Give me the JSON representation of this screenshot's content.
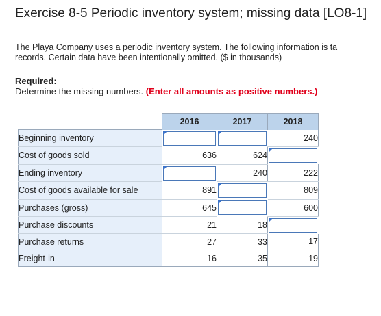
{
  "title": "Exercise 8-5 Periodic inventory system; missing data [LO8-1]",
  "intro_line1": "The Playa Company uses a periodic inventory system. The following information is ta",
  "intro_line2": "records. Certain data have been intentionally omitted. ($ in thousands)",
  "required_heading": "Required:",
  "required_text": "Determine the missing numbers.",
  "required_instruction": "(Enter all amounts as positive numbers.)",
  "columns": [
    "2016",
    "2017",
    "2018"
  ],
  "rows": [
    {
      "label": "Beginning inventory",
      "c2016": "",
      "c2017": "",
      "c2018": "240"
    },
    {
      "label": "Cost of goods sold",
      "c2016": "636",
      "c2017": "624",
      "c2018": ""
    },
    {
      "label": "Ending inventory",
      "c2016": "",
      "c2017": "240",
      "c2018": "222"
    },
    {
      "label": "Cost of goods available for sale",
      "c2016": "891",
      "c2017": "",
      "c2018": "809"
    },
    {
      "label": "Purchases (gross)",
      "c2016": "645",
      "c2017": "",
      "c2018": "600"
    },
    {
      "label": "Purchase discounts",
      "c2016": "21",
      "c2017": "18",
      "c2018": ""
    },
    {
      "label": "Purchase returns",
      "c2016": "27",
      "c2017": "33",
      "c2018": "17"
    },
    {
      "label": "Freight-in",
      "c2016": "16",
      "c2017": "35",
      "c2018": "19"
    }
  ],
  "input_cells": {
    "r0": [
      "c2016",
      "c2017"
    ],
    "r1": [
      "c2018"
    ],
    "r2": [
      "c2016"
    ],
    "r3": [
      "c2017"
    ],
    "r4": [
      "c2017"
    ],
    "r5": [
      "c2018"
    ]
  },
  "colors": {
    "header_bg": "#bcd3eb",
    "label_bg": "#e6effa",
    "emphasis": "#e0001b",
    "input_border": "#4a78b8"
  }
}
